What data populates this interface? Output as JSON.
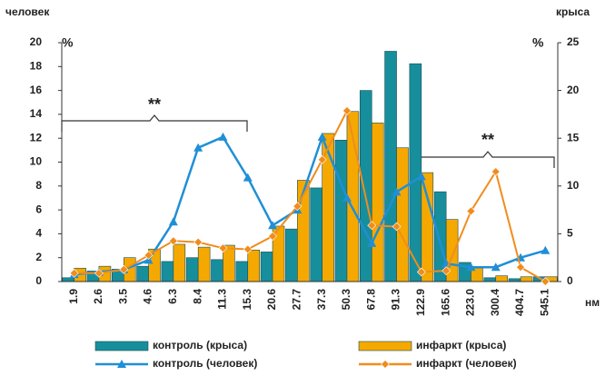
{
  "chart_data": {
    "type": "bar",
    "y_label": "человек",
    "y2_label": "крыса",
    "y_unit": "%",
    "y2_unit": "%",
    "x_unit": "нм",
    "annotations": [
      "**",
      "**"
    ],
    "categories": [
      "1.9",
      "2.6",
      "3.5",
      "4.6",
      "6.3",
      "8.4",
      "11.3",
      "15.3",
      "20.6",
      "27.7",
      "37.3",
      "50.3",
      "67.8",
      "91.3",
      "122.9",
      "165.6",
      "223.0",
      "300.4",
      "404.7",
      "545.1"
    ],
    "ylim": [
      0,
      20
    ],
    "yticks": [
      0,
      2,
      4,
      6,
      8,
      10,
      12,
      14,
      16,
      18,
      20
    ],
    "y2lim": [
      0,
      25
    ],
    "y2ticks": [
      0,
      5,
      10,
      15,
      20,
      25
    ],
    "series": [
      {
        "name": "контроль (крыса)",
        "type": "bar",
        "axis": "y2",
        "color": "#178e9c",
        "values": [
          0.4,
          1.1,
          1.3,
          1.6,
          2.1,
          2.5,
          2.3,
          2.1,
          3.1,
          5.5,
          9.8,
          14.8,
          20.0,
          24.1,
          22.8,
          9.4,
          2.0,
          0.4,
          0.3,
          0.5
        ]
      },
      {
        "name": "инфаркт (крыса)",
        "type": "bar",
        "axis": "y2",
        "color": "#f5a900",
        "values": [
          1.4,
          1.6,
          2.5,
          3.4,
          3.9,
          3.6,
          3.8,
          3.3,
          5.8,
          10.6,
          15.5,
          17.8,
          16.6,
          14.0,
          11.4,
          6.5,
          1.4,
          0.6,
          0.5,
          0.5
        ]
      },
      {
        "name": "контроль (человек)",
        "type": "line",
        "axis": "y",
        "color": "#1f8fd6",
        "values": [
          0.6,
          0.8,
          1.0,
          1.8,
          5.0,
          11.2,
          12.1,
          8.7,
          4.7,
          6.0,
          12.1,
          7.0,
          3.2,
          7.5,
          8.8,
          1.5,
          1.2,
          1.2,
          2.0,
          2.6
        ]
      },
      {
        "name": "инфаркт (человек)",
        "type": "line",
        "axis": "y",
        "color": "#f08c1e",
        "values": [
          0.7,
          0.7,
          1.0,
          2.2,
          3.4,
          3.3,
          2.8,
          2.7,
          3.8,
          6.3,
          10.2,
          14.3,
          4.7,
          4.6,
          0.8,
          0.9,
          5.9,
          9.2,
          1.2,
          0.0
        ]
      }
    ]
  }
}
